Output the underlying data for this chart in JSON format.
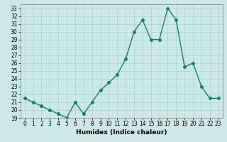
{
  "x": [
    0,
    1,
    2,
    3,
    4,
    5,
    6,
    7,
    8,
    9,
    10,
    11,
    12,
    13,
    14,
    15,
    16,
    17,
    18,
    19,
    20,
    21,
    22,
    23
  ],
  "y": [
    21.5,
    21.0,
    20.5,
    20.0,
    19.5,
    19.0,
    21.0,
    19.5,
    21.0,
    22.5,
    23.5,
    24.5,
    26.5,
    30.0,
    31.5,
    29.0,
    29.0,
    33.0,
    31.5,
    25.5,
    26.0,
    23.0,
    21.5,
    21.5
  ],
  "line_color": "#1a7a6e",
  "marker_color": "#1a7a6e",
  "bg_color": "#cce8e8",
  "grid_color": "#b0d0d0",
  "xlabel": "Humidex (Indice chaleur)",
  "xlim": [
    -0.5,
    23.5
  ],
  "ylim": [
    19,
    33.5
  ],
  "yticks": [
    19,
    20,
    21,
    22,
    23,
    24,
    25,
    26,
    27,
    28,
    29,
    30,
    31,
    32,
    33
  ],
  "xticks": [
    0,
    1,
    2,
    3,
    4,
    5,
    6,
    7,
    8,
    9,
    10,
    11,
    12,
    13,
    14,
    15,
    16,
    17,
    18,
    19,
    20,
    21,
    22,
    23
  ],
  "tick_fontsize": 5.5,
  "xlabel_fontsize": 6.5,
  "line_width": 1.0,
  "marker_size": 2.5
}
